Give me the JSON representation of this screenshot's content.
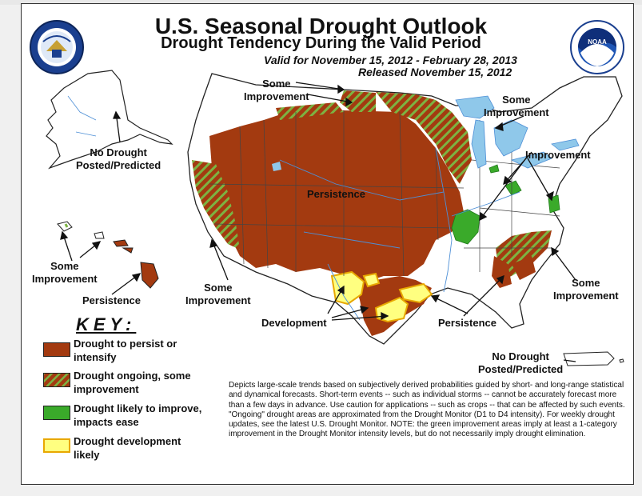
{
  "header": {
    "title": "U.S. Seasonal Drought Outlook",
    "subtitle": "Drought Tendency During the Valid Period",
    "valid_period": "Valid for November 15, 2012 - February 28, 2013",
    "released": "Released November 15, 2012"
  },
  "logos": {
    "left_agency": "U.S. Department of Commerce",
    "right_agency": "NOAA"
  },
  "map_labels": {
    "north_some_improvement": "Some\nImprovement",
    "ne_improvement_1": "Improvement",
    "ne_improvement_2": "Improvement",
    "persistence_center": "Persistence",
    "west_some_improvement": "Some\nImprovement",
    "development": "Development",
    "persistence_gulf": "Persistence",
    "se_some_improvement": "Some\nImprovement",
    "alaska": "No Drought\nPosted/Predicted",
    "hawaii_some_improvement": "Some\nImprovement",
    "hawaii_persistence": "Persistence",
    "puerto_rico": "No Drought\nPosted/Predicted"
  },
  "key": {
    "title": "KEY:",
    "items": [
      {
        "label": "Drought to persist or\nintensify",
        "color": "#a33a10",
        "pattern": "solid"
      },
      {
        "label": "Drought ongoing, some\nimprovement",
        "color": "#a33a10",
        "pattern": "hatched-green"
      },
      {
        "label": "Drought likely to improve,\nimpacts ease",
        "color": "#3aaa2a",
        "pattern": "solid"
      },
      {
        "label": "Drought development\nlikely",
        "color": "#ffff80",
        "pattern": "solid-yellow-border"
      }
    ]
  },
  "disclaimer": "Depicts large-scale trends based on subjectively derived probabilities guided by short- and long-range statistical and dynamical forecasts. Short-term events -- such as individual storms -- cannot be accurately forecast more than a few days in advance. Use caution for applications -- such as crops -- that can be affected by such events. \"Ongoing\" drought areas are approximated from the Drought Monitor (D1 to D4 intensity). For weekly drought updates, see the latest U.S. Drought Monitor. NOTE: the green improvement areas imply at least a 1-category improvement in the Drought Monitor intensity levels, but do not necessarily imply drought elimination.",
  "colors": {
    "persist": "#a33a10",
    "hatch": "#7cb342",
    "improve": "#3aaa2a",
    "develop": "#ffff80",
    "develop_border": "#e8a800",
    "water": "#8fc8ea",
    "state_line": "#444444"
  }
}
